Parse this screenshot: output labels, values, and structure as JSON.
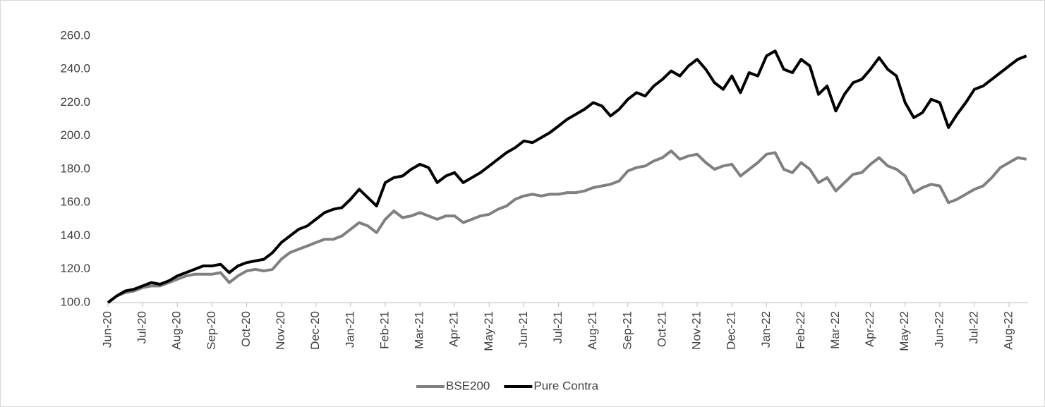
{
  "chart_data": {
    "type": "line",
    "categories": [
      "Jun-20",
      null,
      null,
      null,
      "Jul-20",
      null,
      null,
      null,
      "Aug-20",
      null,
      null,
      null,
      "Sep-20",
      null,
      null,
      null,
      "Oct-20",
      null,
      null,
      null,
      "Nov-20",
      null,
      null,
      null,
      "Dec-20",
      null,
      null,
      null,
      "Jan-21",
      null,
      null,
      null,
      "Feb-21",
      null,
      null,
      null,
      "Mar-21",
      null,
      null,
      null,
      "Apr-21",
      null,
      null,
      null,
      "May-21",
      null,
      null,
      null,
      "Jun-21",
      null,
      null,
      null,
      "Jul-21",
      null,
      null,
      null,
      "Aug-21",
      null,
      null,
      null,
      "Sep-21",
      null,
      null,
      null,
      "Oct-21",
      null,
      null,
      null,
      "Nov-21",
      null,
      null,
      null,
      "Dec-21",
      null,
      null,
      null,
      "Jan-22",
      null,
      null,
      null,
      "Feb-22",
      null,
      null,
      null,
      "Mar-22",
      null,
      null,
      null,
      "Apr-22",
      null,
      null,
      null,
      "May-22",
      null,
      null,
      null,
      "Jun-22",
      null,
      null,
      null,
      "Jul-22",
      null,
      null,
      null,
      "Aug-22",
      null,
      null
    ],
    "series": [
      {
        "name": "BSE200",
        "color": "#808080",
        "values": [
          100,
          104,
          106,
          107,
          109,
          110,
          110,
          112,
          114,
          116,
          117,
          117,
          117,
          118,
          112,
          116,
          119,
          120,
          119,
          120,
          126,
          130,
          132,
          134,
          136,
          138,
          138,
          140,
          144,
          148,
          146,
          142,
          150,
          155,
          151,
          152,
          154,
          152,
          150,
          152,
          152,
          148,
          150,
          152,
          153,
          156,
          158,
          162,
          164,
          165,
          164,
          165,
          165,
          166,
          166,
          167,
          169,
          170,
          171,
          173,
          179,
          181,
          182,
          185,
          187,
          191,
          186,
          188,
          189,
          184,
          180,
          182,
          183,
          176,
          180,
          184,
          189,
          190,
          180,
          178,
          184,
          180,
          172,
          175,
          167,
          172,
          177,
          178,
          183,
          187,
          182,
          180,
          176,
          166,
          169,
          171,
          170,
          160,
          162,
          165,
          168,
          170,
          175,
          181,
          184,
          187,
          186
        ]
      },
      {
        "name": "Pure Contra",
        "color": "#000000",
        "values": [
          100,
          104,
          107,
          108,
          110,
          112,
          111,
          113,
          116,
          118,
          120,
          122,
          122,
          123,
          118,
          122,
          124,
          125,
          126,
          130,
          136,
          140,
          144,
          146,
          150,
          154,
          156,
          157,
          162,
          168,
          163,
          158,
          172,
          175,
          176,
          180,
          183,
          181,
          172,
          176,
          178,
          172,
          175,
          178,
          182,
          186,
          190,
          193,
          197,
          196,
          199,
          202,
          206,
          210,
          213,
          216,
          220,
          218,
          212,
          216,
          222,
          226,
          224,
          230,
          234,
          239,
          236,
          242,
          246,
          240,
          232,
          228,
          236,
          226,
          238,
          236,
          248,
          251,
          240,
          238,
          246,
          242,
          225,
          230,
          215,
          225,
          232,
          234,
          240,
          247,
          240,
          236,
          220,
          211,
          214,
          222,
          220,
          205,
          213,
          220,
          228,
          230,
          234,
          238,
          242,
          246,
          248
        ]
      }
    ],
    "ylim": [
      100,
      260
    ],
    "yticks": [
      {
        "value": 100,
        "label": "100.0"
      },
      {
        "value": 120,
        "label": "120.0"
      },
      {
        "value": 140,
        "label": "140.0"
      },
      {
        "value": 160,
        "label": "160.0"
      },
      {
        "value": 180,
        "label": "180.0"
      },
      {
        "value": 200,
        "label": "200.0"
      },
      {
        "value": 220,
        "label": "220.0"
      },
      {
        "value": 240,
        "label": "240.0"
      },
      {
        "value": 260,
        "label": "260.0"
      }
    ],
    "legend": "bottom"
  }
}
